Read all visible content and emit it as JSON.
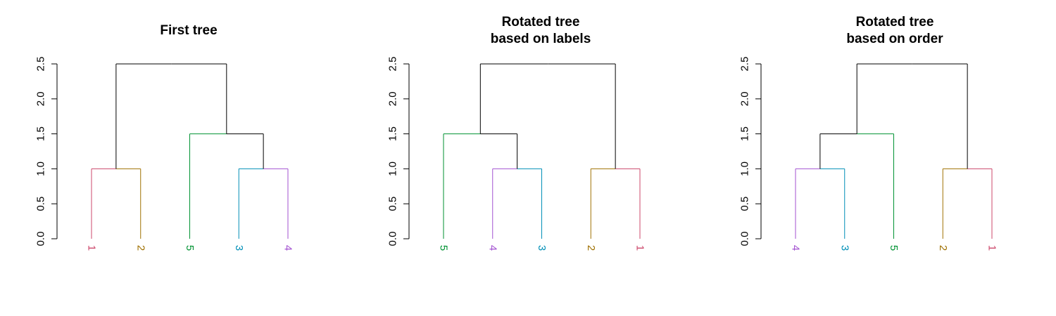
{
  "chart_data": [
    {
      "type": "dendrogram",
      "title_lines": [
        "First tree"
      ],
      "ylim": [
        0,
        2.5
      ],
      "y_ticks": [
        "0.0",
        "0.5",
        "1.0",
        "1.5",
        "2.0",
        "2.5"
      ],
      "leaves": [
        {
          "label": "1",
          "color": "#CC476B"
        },
        {
          "label": "2",
          "color": "#9F7000"
        },
        {
          "label": "5",
          "color": "#009232"
        },
        {
          "label": "3",
          "color": "#008FB7"
        },
        {
          "label": "4",
          "color": "#A352D1"
        }
      ],
      "merges": [
        {
          "left": 0,
          "right": 1,
          "height": 1.0
        },
        {
          "left": 3,
          "right": 4,
          "height": 1.0
        },
        {
          "left": 2,
          "right": "m2",
          "height": 1.5
        },
        {
          "left": "m1",
          "right": "m3",
          "height": 2.5
        }
      ]
    },
    {
      "type": "dendrogram",
      "title_lines": [
        "Rotated tree",
        "based on labels"
      ],
      "ylim": [
        0,
        2.5
      ],
      "y_ticks": [
        "0.0",
        "0.5",
        "1.0",
        "1.5",
        "2.0",
        "2.5"
      ],
      "leaves": [
        {
          "label": "5",
          "color": "#009232"
        },
        {
          "label": "4",
          "color": "#A352D1"
        },
        {
          "label": "3",
          "color": "#008FB7"
        },
        {
          "label": "2",
          "color": "#9F7000"
        },
        {
          "label": "1",
          "color": "#CC476B"
        }
      ],
      "merges": [
        {
          "left": 1,
          "right": 2,
          "height": 1.0
        },
        {
          "left": 3,
          "right": 4,
          "height": 1.0
        },
        {
          "left": 0,
          "right": "m1",
          "height": 1.5
        },
        {
          "left": "m3",
          "right": "m2",
          "height": 2.5
        }
      ]
    },
    {
      "type": "dendrogram",
      "title_lines": [
        "Rotated tree",
        "based on order"
      ],
      "ylim": [
        0,
        2.5
      ],
      "y_ticks": [
        "0.0",
        "0.5",
        "1.0",
        "1.5",
        "2.0",
        "2.5"
      ],
      "leaves": [
        {
          "label": "4",
          "color": "#A352D1"
        },
        {
          "label": "3",
          "color": "#008FB7"
        },
        {
          "label": "5",
          "color": "#009232"
        },
        {
          "label": "2",
          "color": "#9F7000"
        },
        {
          "label": "1",
          "color": "#CC476B"
        }
      ],
      "merges": [
        {
          "left": 0,
          "right": 1,
          "height": 1.0
        },
        {
          "left": 3,
          "right": 4,
          "height": 1.0
        },
        {
          "left": "m1",
          "right": 2,
          "height": 1.5
        },
        {
          "left": "m3",
          "right": "m2",
          "height": 2.5
        }
      ]
    }
  ]
}
